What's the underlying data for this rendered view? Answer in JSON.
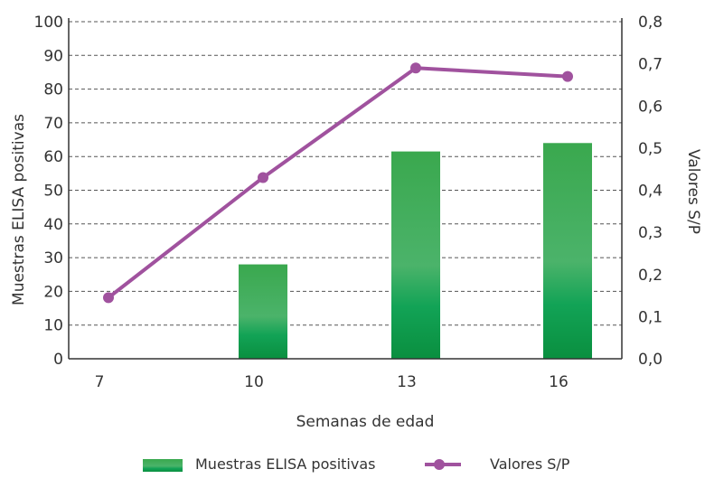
{
  "chart_data": {
    "type": "bar",
    "categories": [
      "7",
      "10",
      "13",
      "16"
    ],
    "xlabel": "Semanas de edad",
    "ylabel_left": "Muestras ELISA positivas",
    "ylabel_right": "Valores S/P",
    "ylim_left": [
      0,
      100
    ],
    "ylim_right": [
      0.0,
      0.8
    ],
    "yticks_left": [
      "0",
      "10",
      "20",
      "30",
      "40",
      "50",
      "60",
      "70",
      "80",
      "90",
      "100"
    ],
    "yticks_right": [
      "0,0",
      "0,1",
      "0,2",
      "0,3",
      "0,4",
      "0,5",
      "0,6",
      "0,7",
      "0,8"
    ],
    "grid": "horizontal dashed",
    "legend_position": "bottom",
    "series": [
      {
        "name": "Muestras ELISA positivas",
        "type": "bar",
        "axis": "left",
        "values": [
          0,
          28,
          61.5,
          64
        ],
        "color": "#1e9e4a"
      },
      {
        "name": "Valores S/P",
        "type": "line",
        "axis": "right",
        "values": [
          0.145,
          0.43,
          0.69,
          0.67
        ],
        "color": "#a0529e"
      }
    ]
  }
}
